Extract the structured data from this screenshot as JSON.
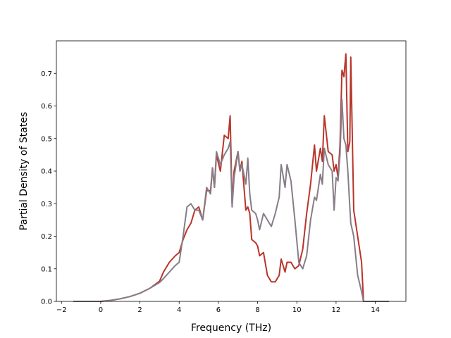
{
  "chart_data": {
    "type": "line",
    "xlabel": "Frequency (THz)",
    "ylabel": "Partial Density of States",
    "x": [
      -1.4,
      0,
      0.5,
      1,
      1.5,
      2,
      2.5,
      3,
      3.2,
      3.5,
      3.8,
      4.0,
      4.2,
      4.4,
      4.6,
      4.8,
      5.0,
      5.2,
      5.4,
      5.6,
      5.7,
      5.8,
      5.9,
      6.1,
      6.3,
      6.5,
      6.6,
      6.7,
      6.8,
      7.0,
      7.1,
      7.2,
      7.4,
      7.5,
      7.6,
      7.7,
      7.9,
      8.0,
      8.1,
      8.3,
      8.5,
      8.7,
      8.9,
      9.1,
      9.2,
      9.4,
      9.5,
      9.7,
      9.9,
      10.1,
      10.3,
      10.5,
      10.7,
      10.9,
      11.0,
      11.2,
      11.3,
      11.4,
      11.6,
      11.8,
      11.9,
      12.0,
      12.1,
      12.2,
      12.3,
      12.4,
      12.5,
      12.6,
      12.7,
      12.75,
      12.9,
      13.1,
      13.3,
      13.4,
      14.7
    ],
    "series": [
      {
        "color": "#b8352a",
        "values": [
          0,
          0,
          0.003,
          0.008,
          0.015,
          0.025,
          0.04,
          0.062,
          0.09,
          0.12,
          0.14,
          0.15,
          0.19,
          0.22,
          0.24,
          0.28,
          0.29,
          0.25,
          0.34,
          0.34,
          0.41,
          0.35,
          0.45,
          0.4,
          0.51,
          0.5,
          0.57,
          0.3,
          0.4,
          0.46,
          0.4,
          0.43,
          0.28,
          0.29,
          0.27,
          0.19,
          0.18,
          0.17,
          0.14,
          0.15,
          0.08,
          0.06,
          0.06,
          0.08,
          0.13,
          0.09,
          0.12,
          0.12,
          0.1,
          0.11,
          0.16,
          0.27,
          0.36,
          0.48,
          0.4,
          0.47,
          0.43,
          0.57,
          0.46,
          0.45,
          0.4,
          0.42,
          0.38,
          0.48,
          0.71,
          0.69,
          0.76,
          0.46,
          0.49,
          0.75,
          0.28,
          0.2,
          0.12,
          0,
          0
        ]
      },
      {
        "color": "#877d88",
        "values": [
          0,
          0,
          0.003,
          0.008,
          0.015,
          0.025,
          0.04,
          0.058,
          0.07,
          0.09,
          0.11,
          0.12,
          0.2,
          0.29,
          0.3,
          0.28,
          0.28,
          0.25,
          0.35,
          0.33,
          0.41,
          0.35,
          0.46,
          0.42,
          0.45,
          0.47,
          0.49,
          0.29,
          0.38,
          0.46,
          0.4,
          0.42,
          0.36,
          0.44,
          0.33,
          0.28,
          0.27,
          0.25,
          0.22,
          0.27,
          0.25,
          0.23,
          0.27,
          0.32,
          0.42,
          0.35,
          0.42,
          0.37,
          0.25,
          0.12,
          0.1,
          0.14,
          0.25,
          0.32,
          0.31,
          0.39,
          0.36,
          0.47,
          0.42,
          0.4,
          0.28,
          0.38,
          0.37,
          0.45,
          0.62,
          0.5,
          0.48,
          0.4,
          0.29,
          0.24,
          0.2,
          0.08,
          0.03,
          0,
          0
        ]
      }
    ],
    "xlim": [
      -2.26,
      15.56
    ],
    "xticks": [
      {
        "value": -2,
        "label": "−2"
      },
      0,
      2,
      4,
      6,
      8,
      10,
      12,
      14
    ],
    "ylim": [
      0,
      0.8
    ],
    "yticks": [
      {
        "value": 0,
        "label": "0.0"
      },
      0.1,
      0.2,
      0.3,
      0.4,
      0.5,
      0.6,
      0.7
    ]
  }
}
